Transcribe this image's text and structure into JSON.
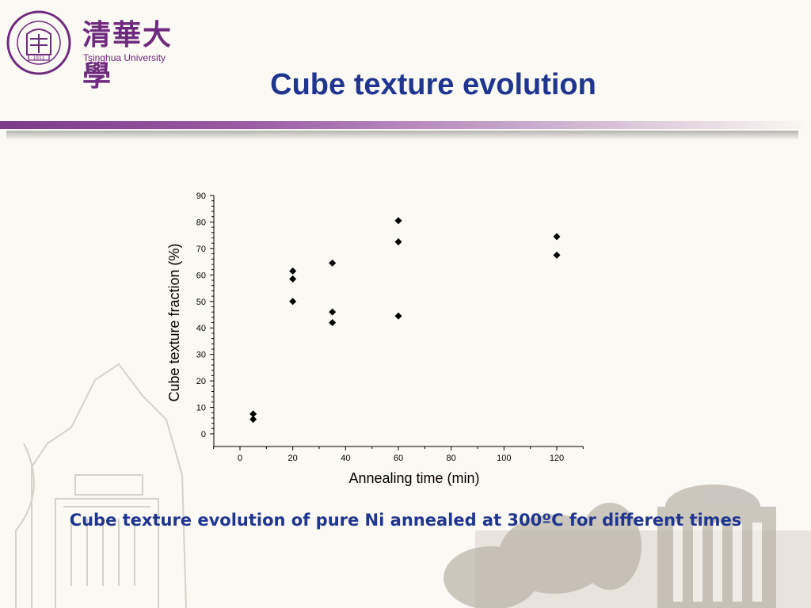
{
  "logo": {
    "chinese_name": "清華大學",
    "english_name": "Tsinghua University",
    "seal_text": "TSINGHUA UNIVERSITY",
    "seal_year": "1911"
  },
  "slide": {
    "title": "Cube texture evolution",
    "caption": "Cube texture evolution of pure Ni annealed at 300ºC for different times"
  },
  "colors": {
    "title": "#1f3590",
    "accent": "#7a3b89",
    "background": "#fbf9f3"
  },
  "chart_data": {
    "type": "scatter",
    "title": "",
    "xlabel": "Annealing time (min)",
    "ylabel": "Cube texture fraction (%)",
    "xlim": [
      -10,
      130
    ],
    "ylim": [
      0,
      90
    ],
    "xticks": [
      0,
      20,
      40,
      60,
      80,
      100,
      120
    ],
    "yticks": [
      0,
      10,
      20,
      30,
      40,
      50,
      60,
      70,
      80,
      90
    ],
    "marker": "diamond",
    "grid": false,
    "series": [
      {
        "points": [
          {
            "x": 5,
            "y": 7.5
          },
          {
            "x": 5,
            "y": 5.5
          },
          {
            "x": 20,
            "y": 61.5
          },
          {
            "x": 20,
            "y": 58.5
          },
          {
            "x": 20,
            "y": 50
          },
          {
            "x": 35,
            "y": 64.5
          },
          {
            "x": 35,
            "y": 46
          },
          {
            "x": 35,
            "y": 42
          },
          {
            "x": 60,
            "y": 80.5
          },
          {
            "x": 60,
            "y": 72.5
          },
          {
            "x": 60,
            "y": 44.5
          },
          {
            "x": 120,
            "y": 74.5
          },
          {
            "x": 120,
            "y": 67.5
          }
        ]
      }
    ]
  }
}
